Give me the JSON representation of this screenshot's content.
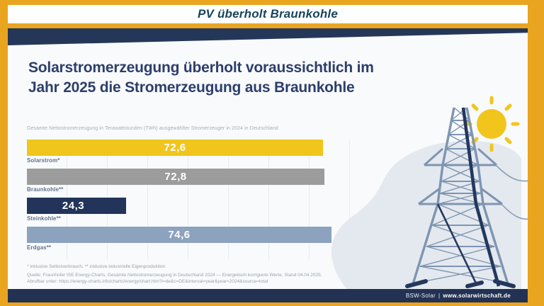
{
  "banner": {
    "title": "PV überholt Braunkohle"
  },
  "headline": {
    "line1": "Solarstromerzeugung überholt voraussichtlich im",
    "line2": "Jahr 2025 die Stromerzeugung aus Braunkohle"
  },
  "chart_data": {
    "type": "bar",
    "orientation": "horizontal",
    "title": "Gesamte Nettostromerzeugung in Terawattstunden (TWh) ausgewählter Stromerzeuger in 2024 in Deutschland",
    "unit": "TWh",
    "xlim": [
      0,
      80
    ],
    "grid": "vertical-light",
    "legend": "none",
    "categories": [
      "Solarstrom*",
      "Braunkohle**",
      "Steinkohle**",
      "Erdgas**"
    ],
    "values": [
      72.6,
      72.8,
      24.3,
      74.6
    ],
    "value_labels": [
      "72,6",
      "72,8",
      "24,3",
      "74,6"
    ],
    "bar_colors": [
      "#F0C51C",
      "#9C9C9C",
      "#22345A",
      "#8CA2BE"
    ],
    "value_align": [
      "center",
      "center",
      "right",
      "center"
    ]
  },
  "footnotes": {
    "line1": "* inklusive Selbstverbrauch, ** inklusive industrielle Eigenproduktion",
    "line2": "Quelle: Fraunhofer ISE Energy-Charts, Gesamte Nettostromerzeugung in Deutschland 2024 — Energetisch korrigierte Werte, Stand 04.04.2025,",
    "line3": "Abrufbar unter: https://energy-charts.info/charts/energy/chart.htm?l=de&c=DE&interval=year&year=2024&source=total"
  },
  "footer": {
    "brand": "BSW-Solar",
    "divider": "|",
    "website": "www.solarwirtschaft.de"
  },
  "colors": {
    "frame_orange": "#E9A51F",
    "navy": "#253759",
    "headline_navy": "#2D3E6B",
    "background": "#F8FAFC",
    "blob_gray": "#E4E9EF",
    "sun_yellow": "#F2C51D",
    "pylon_light": "#7E95B1",
    "pylon_dark": "#24385E"
  },
  "illustration": {
    "items": [
      "sun",
      "transmission-tower",
      "power-lines",
      "background-blob"
    ]
  }
}
